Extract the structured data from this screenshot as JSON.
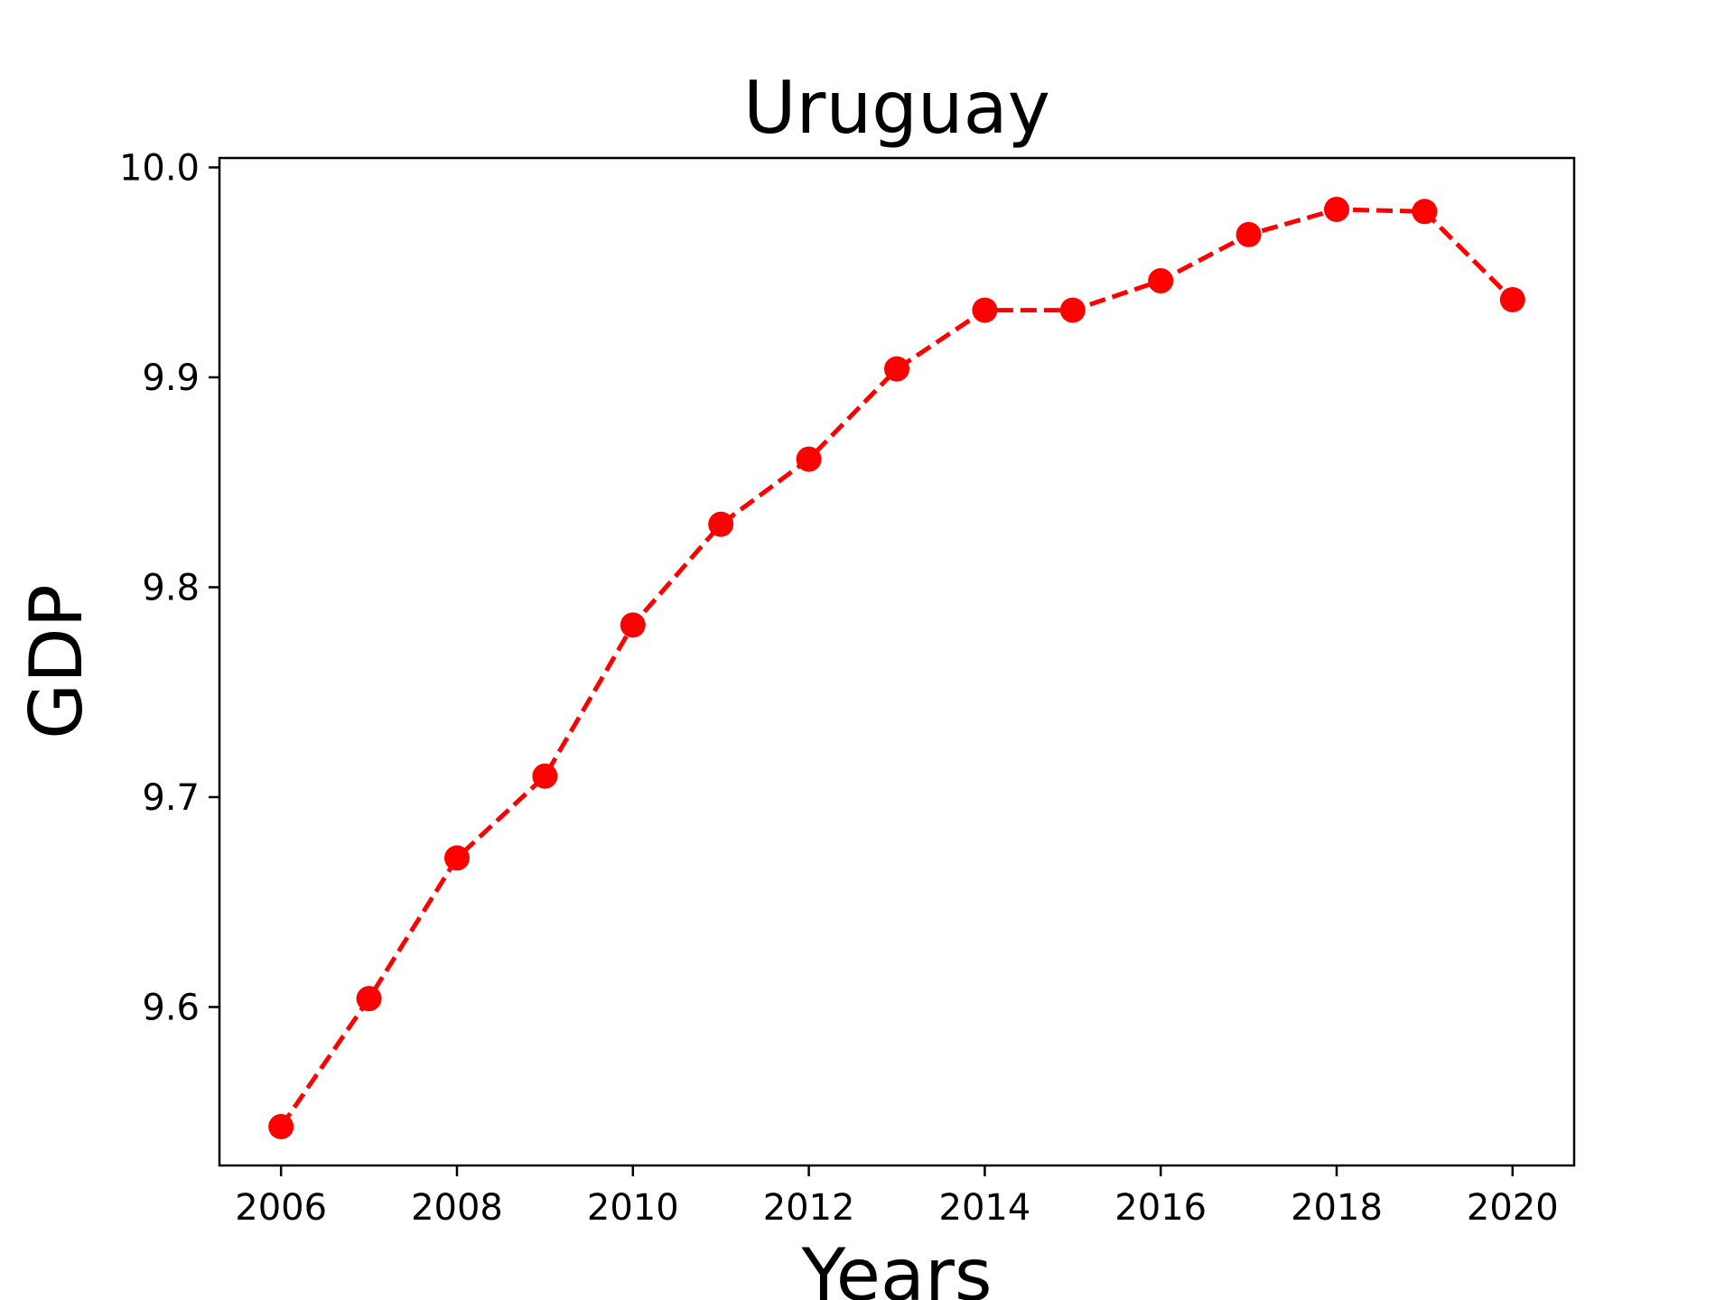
{
  "chart_data": {
    "type": "line",
    "title": "Uruguay",
    "xlabel": "Years",
    "ylabel": "GDP",
    "x_ticks": [
      "2006",
      "2008",
      "2010",
      "2012",
      "2014",
      "2016",
      "2018",
      "2020"
    ],
    "y_ticks": [
      "9.6",
      "9.7",
      "9.8",
      "9.9",
      "10.0"
    ],
    "xlim": [
      2005.3,
      2020.7
    ],
    "ylim": [
      9.5245,
      10.0045
    ],
    "grid": false,
    "series": [
      {
        "line_style": "dashed",
        "marker": "circle",
        "color": "#ff0000",
        "x": [
          2006,
          2007,
          2008,
          2009,
          2010,
          2011,
          2012,
          2013,
          2014,
          2015,
          2016,
          2017,
          2018,
          2019,
          2020
        ],
        "values": [
          9.543,
          9.604,
          9.671,
          9.71,
          9.782,
          9.83,
          9.861,
          9.904,
          9.932,
          9.932,
          9.946,
          9.968,
          9.98,
          9.979,
          9.937
        ]
      }
    ]
  }
}
